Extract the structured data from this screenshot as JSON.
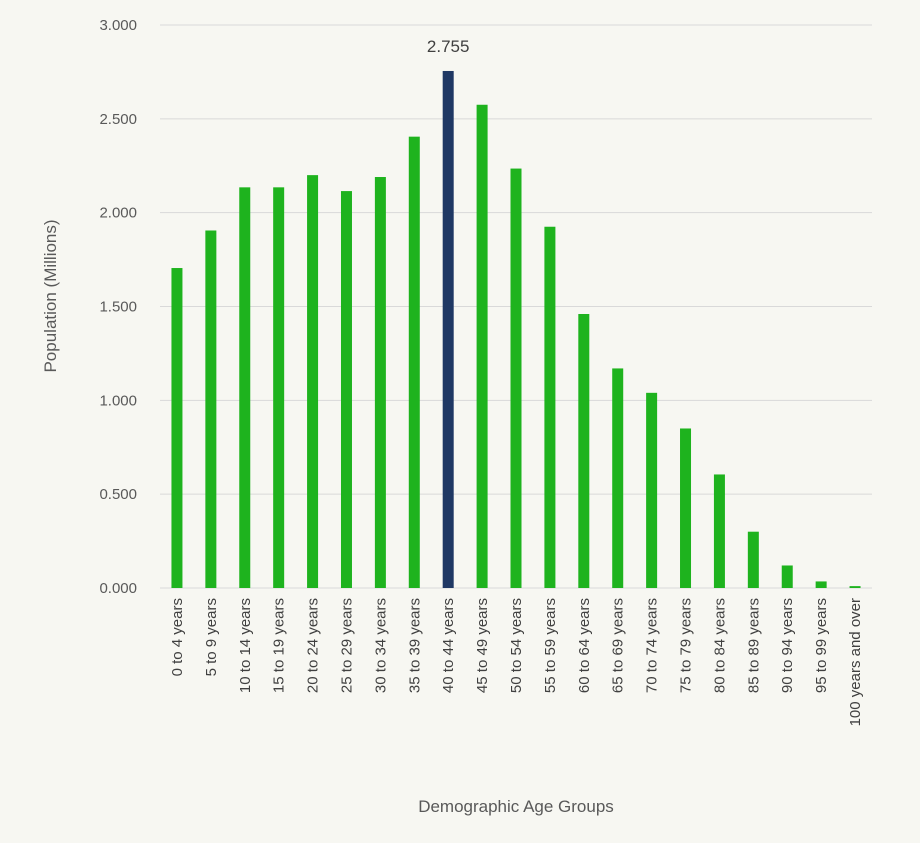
{
  "chart_data": {
    "type": "bar",
    "title": "",
    "xlabel": "Demographic Age Groups",
    "ylabel": "Population (Millions)",
    "ylim": [
      0,
      3.0
    ],
    "yticks": [
      "0.000",
      "0.500",
      "1.000",
      "1.500",
      "2.000",
      "2.500",
      "3.000"
    ],
    "ytick_values": [
      0,
      0.5,
      1.0,
      1.5,
      2.0,
      2.5,
      3.0
    ],
    "grid": true,
    "categories": [
      "0 to 4 years",
      "5 to 9 years",
      "10 to 14 years",
      "15 to 19 years",
      "20 to 24 years",
      "25 to 29 years",
      "30 to 34 years",
      "35 to 39 years",
      "40 to 44 years",
      "45 to 49 years",
      "50 to 54 years",
      "55 to 59 years",
      "60 to 64 years",
      "65 to 69 years",
      "70 to 74 years",
      "75 to 79 years",
      "80 to 84 years",
      "85 to 89 years",
      "90 to 94 years",
      "95 to 99 years",
      "100 years and over"
    ],
    "values": [
      1.705,
      1.905,
      2.135,
      2.135,
      2.2,
      2.115,
      2.19,
      2.405,
      2.755,
      2.575,
      2.235,
      1.925,
      1.46,
      1.17,
      1.04,
      0.85,
      0.605,
      0.3,
      0.12,
      0.035,
      0.01
    ],
    "highlight_index": 8,
    "highlight_label": "2.755",
    "colors": {
      "bar": "#1eb31e",
      "highlight": "#1f3864",
      "grid": "#d9d9d9",
      "background": "#f7f7f2"
    }
  }
}
